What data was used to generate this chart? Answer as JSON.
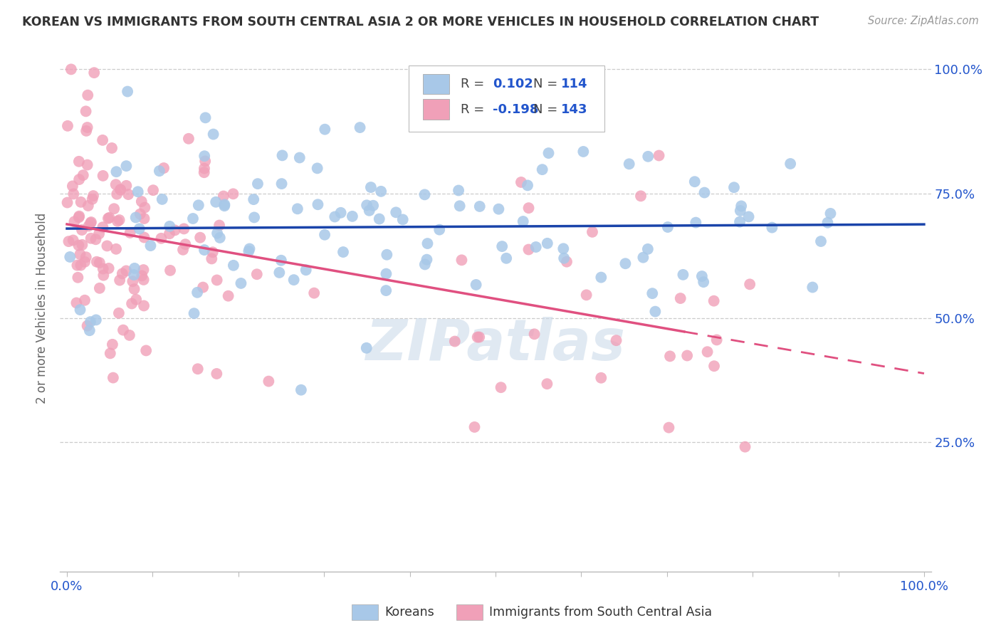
{
  "title": "KOREAN VS IMMIGRANTS FROM SOUTH CENTRAL ASIA 2 OR MORE VEHICLES IN HOUSEHOLD CORRELATION CHART",
  "source": "Source: ZipAtlas.com",
  "ylabel": "2 or more Vehicles in Household",
  "blue_R": 0.102,
  "blue_N": 114,
  "pink_R": -0.198,
  "pink_N": 143,
  "blue_color": "#a8c8e8",
  "pink_color": "#f0a0b8",
  "blue_line_color": "#1a44aa",
  "pink_line_color": "#e05080",
  "pink_dash_color": "#e898b0",
  "watermark": "ZIPatlas",
  "background_color": "#ffffff",
  "legend_blue_label": "Koreans",
  "legend_pink_label": "Immigrants from South Central Asia",
  "title_color": "#333333",
  "source_color": "#999999",
  "axis_label_color": "#2255cc",
  "ylabel_color": "#666666"
}
